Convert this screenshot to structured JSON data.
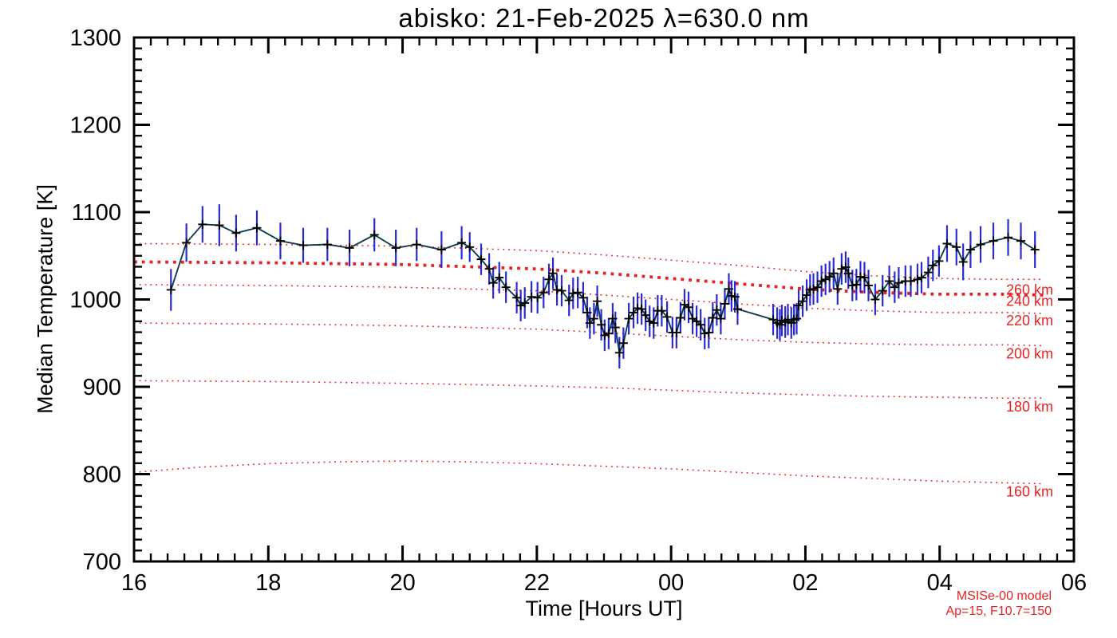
{
  "chart_data": {
    "type": "line",
    "title": "abisko: 21-Feb-2025 λ=630.0 nm",
    "xlabel": "Time [Hours UT]",
    "ylabel": "Median Temperature [K]",
    "xlim": [
      16,
      30
    ],
    "ylim": [
      700,
      1300
    ],
    "grid": false,
    "x_tick_values": [
      16,
      18,
      20,
      22,
      24,
      26,
      28,
      30
    ],
    "x_tick_labels": [
      "16",
      "18",
      "20",
      "22",
      "00",
      "02",
      "04",
      "06"
    ],
    "x_minor_step": 0.25,
    "y_tick_values": [
      700,
      800,
      900,
      1000,
      1100,
      1200,
      1300
    ],
    "y_tick_labels": [
      "700",
      "800",
      "900",
      "1000",
      "1100",
      "1200",
      "1300"
    ],
    "y_minor_step": 12.5,
    "series": [
      {
        "name": "median temperature with error bars",
        "marker": "plus",
        "points": [
          [
            16.55,
            1011,
            24
          ],
          [
            16.78,
            1065,
            22
          ],
          [
            17.02,
            1086,
            21
          ],
          [
            17.27,
            1085,
            24
          ],
          [
            17.52,
            1076,
            21
          ],
          [
            17.83,
            1082,
            20
          ],
          [
            18.18,
            1067,
            21
          ],
          [
            18.52,
            1062,
            20
          ],
          [
            18.88,
            1063,
            19
          ],
          [
            19.21,
            1059,
            21
          ],
          [
            19.58,
            1074,
            19
          ],
          [
            19.9,
            1059,
            21
          ],
          [
            20.21,
            1063,
            19
          ],
          [
            20.58,
            1057,
            21
          ],
          [
            20.88,
            1065,
            19
          ],
          [
            21.0,
            1060,
            17
          ],
          [
            21.17,
            1046,
            18
          ],
          [
            21.29,
            1035,
            18
          ],
          [
            21.35,
            1019,
            18
          ],
          [
            21.44,
            1025,
            18
          ],
          [
            21.54,
            1014,
            18
          ],
          [
            21.7,
            1002,
            18
          ],
          [
            21.76,
            993,
            18
          ],
          [
            21.82,
            996,
            18
          ],
          [
            21.92,
            1003,
            18
          ],
          [
            22.01,
            1002,
            18
          ],
          [
            22.1,
            1008,
            18
          ],
          [
            22.18,
            1023,
            18
          ],
          [
            22.24,
            1030,
            18
          ],
          [
            22.3,
            1011,
            18
          ],
          [
            22.37,
            1010,
            18
          ],
          [
            22.48,
            999,
            18
          ],
          [
            22.54,
            1007,
            18
          ],
          [
            22.61,
            1008,
            18
          ],
          [
            22.69,
            1002,
            18
          ],
          [
            22.75,
            985,
            18
          ],
          [
            22.79,
            973,
            18
          ],
          [
            22.85,
            978,
            18
          ],
          [
            22.9,
            998,
            18
          ],
          [
            22.96,
            971,
            18
          ],
          [
            23.01,
            959,
            18
          ],
          [
            23.07,
            961,
            18
          ],
          [
            23.13,
            978,
            18
          ],
          [
            23.17,
            968,
            18
          ],
          [
            23.23,
            939,
            18
          ],
          [
            23.29,
            950,
            18
          ],
          [
            23.37,
            978,
            18
          ],
          [
            23.44,
            985,
            18
          ],
          [
            23.5,
            990,
            18
          ],
          [
            23.56,
            989,
            18
          ],
          [
            23.62,
            982,
            18
          ],
          [
            23.68,
            975,
            18
          ],
          [
            23.74,
            973,
            18
          ],
          [
            23.8,
            987,
            18
          ],
          [
            23.86,
            987,
            18
          ],
          [
            23.94,
            980,
            18
          ],
          [
            24.02,
            962,
            18
          ],
          [
            24.08,
            962,
            18
          ],
          [
            24.14,
            979,
            18
          ],
          [
            24.2,
            994,
            18
          ],
          [
            24.26,
            991,
            18
          ],
          [
            24.32,
            978,
            18
          ],
          [
            24.38,
            975,
            18
          ],
          [
            24.44,
            971,
            18
          ],
          [
            24.5,
            961,
            18
          ],
          [
            24.56,
            962,
            18
          ],
          [
            24.62,
            979,
            18
          ],
          [
            24.68,
            988,
            18
          ],
          [
            24.74,
            978,
            18
          ],
          [
            24.8,
            995,
            18
          ],
          [
            24.86,
            1012,
            18
          ],
          [
            24.9,
            1004,
            18
          ],
          [
            24.95,
            1003,
            18
          ],
          [
            24.99,
            989,
            18
          ],
          [
            25.52,
            977,
            18
          ],
          [
            25.58,
            973,
            18
          ],
          [
            25.62,
            971,
            18
          ],
          [
            25.65,
            976,
            18
          ],
          [
            25.7,
            974,
            18
          ],
          [
            25.74,
            977,
            18
          ],
          [
            25.79,
            973,
            18
          ],
          [
            25.83,
            977,
            18
          ],
          [
            25.87,
            978,
            18
          ],
          [
            25.9,
            993,
            18
          ],
          [
            25.96,
            998,
            18
          ],
          [
            26.02,
            1005,
            18
          ],
          [
            26.07,
            1011,
            18
          ],
          [
            26.12,
            1012,
            18
          ],
          [
            26.18,
            1014,
            18
          ],
          [
            26.24,
            1021,
            18
          ],
          [
            26.3,
            1023,
            18
          ],
          [
            26.36,
            1026,
            18
          ],
          [
            26.42,
            1030,
            18
          ],
          [
            26.48,
            1012,
            18
          ],
          [
            26.54,
            1035,
            18
          ],
          [
            26.6,
            1037,
            18
          ],
          [
            26.64,
            1030,
            18
          ],
          [
            26.7,
            1016,
            18
          ],
          [
            26.76,
            1017,
            18
          ],
          [
            26.82,
            1026,
            18
          ],
          [
            26.88,
            1025,
            18
          ],
          [
            26.94,
            1016,
            18
          ],
          [
            27.04,
            1000,
            18
          ],
          [
            27.15,
            1010,
            18
          ],
          [
            27.25,
            1021,
            18
          ],
          [
            27.33,
            1014,
            18
          ],
          [
            27.39,
            1019,
            18
          ],
          [
            27.49,
            1021,
            18
          ],
          [
            27.57,
            1021,
            18
          ],
          [
            27.67,
            1023,
            18
          ],
          [
            27.73,
            1025,
            18
          ],
          [
            27.83,
            1031,
            18
          ],
          [
            27.9,
            1039,
            18
          ],
          [
            27.99,
            1044,
            18
          ],
          [
            28.11,
            1064,
            21
          ],
          [
            28.25,
            1060,
            21
          ],
          [
            28.35,
            1043,
            21
          ],
          [
            28.46,
            1057,
            21
          ],
          [
            28.61,
            1063,
            21
          ],
          [
            28.8,
            1067,
            21
          ],
          [
            29.02,
            1071,
            21
          ],
          [
            29.21,
            1067,
            21
          ],
          [
            29.42,
            1057,
            21
          ]
        ]
      }
    ],
    "model_lines": [
      {
        "label": "260 km",
        "bold": false,
        "label_T": 1011,
        "points": [
          [
            16,
            1064
          ],
          [
            18,
            1063
          ],
          [
            20,
            1061
          ],
          [
            22,
            1056
          ],
          [
            23,
            1051
          ],
          [
            24,
            1045
          ],
          [
            25,
            1039
          ],
          [
            26,
            1032
          ],
          [
            27,
            1027
          ],
          [
            28,
            1024
          ],
          [
            29,
            1023
          ],
          [
            29.55,
            1023
          ]
        ]
      },
      {
        "label": "240 km",
        "bold": true,
        "label_T": 998,
        "points": [
          [
            16,
            1043
          ],
          [
            18,
            1042
          ],
          [
            20,
            1040
          ],
          [
            22,
            1035
          ],
          [
            23,
            1030
          ],
          [
            24,
            1024
          ],
          [
            25,
            1018
          ],
          [
            26,
            1012
          ],
          [
            27,
            1008
          ],
          [
            28,
            1006
          ],
          [
            29,
            1006
          ],
          [
            29.55,
            1005
          ]
        ]
      },
      {
        "label": "220 km",
        "bold": false,
        "label_T": 976,
        "points": [
          [
            16,
            1017
          ],
          [
            18,
            1016
          ],
          [
            20,
            1014
          ],
          [
            22,
            1010
          ],
          [
            23,
            1005
          ],
          [
            24,
            1000
          ],
          [
            25,
            995
          ],
          [
            26,
            990
          ],
          [
            27,
            987
          ],
          [
            28,
            985
          ],
          [
            29,
            985
          ],
          [
            29.55,
            984
          ]
        ]
      },
      {
        "label": "200 km",
        "bold": false,
        "label_T": 938,
        "points": [
          [
            16,
            973
          ],
          [
            18,
            972
          ],
          [
            20,
            970
          ],
          [
            22,
            966
          ],
          [
            23,
            962
          ],
          [
            24,
            958
          ],
          [
            25,
            954
          ],
          [
            26,
            951
          ],
          [
            27,
            949
          ],
          [
            28,
            948
          ],
          [
            29,
            948
          ],
          [
            29.55,
            947
          ]
        ]
      },
      {
        "label": "180 km",
        "bold": false,
        "label_T": 877,
        "points": [
          [
            16,
            907
          ],
          [
            18,
            906
          ],
          [
            20,
            904
          ],
          [
            22,
            901
          ],
          [
            23,
            899
          ],
          [
            24,
            896
          ],
          [
            25,
            893
          ],
          [
            26,
            891
          ],
          [
            27,
            889
          ],
          [
            28,
            888
          ],
          [
            29,
            887
          ],
          [
            29.55,
            887
          ]
        ]
      },
      {
        "label": "160 km",
        "bold": false,
        "label_T": 780,
        "points": [
          [
            16,
            802
          ],
          [
            17,
            808
          ],
          [
            18,
            812
          ],
          [
            19,
            814
          ],
          [
            20,
            815
          ],
          [
            21,
            814
          ],
          [
            22,
            812
          ],
          [
            23,
            809
          ],
          [
            24,
            806
          ],
          [
            25,
            802
          ],
          [
            26,
            798
          ],
          [
            27,
            795
          ],
          [
            28,
            792
          ],
          [
            29,
            790
          ],
          [
            29.55,
            789
          ]
        ]
      }
    ],
    "annotation": {
      "line1": "MSISe-00 model",
      "line2": "Ap=15, F10.7=150"
    },
    "legend_position": "none"
  },
  "colors": {
    "data_line": "#0e3a52",
    "marker": "#000000",
    "error_bar": "#2b2bd4",
    "model_red": "#e82222",
    "axis": "#000000",
    "background": "#ffffff"
  }
}
